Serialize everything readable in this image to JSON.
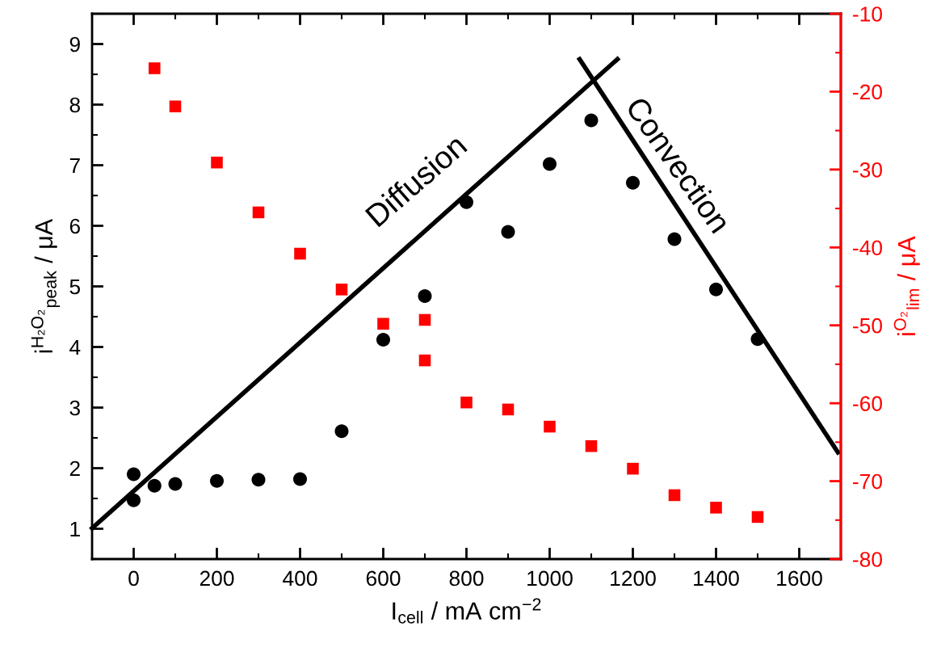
{
  "chart_data": {
    "type": "scatter",
    "xlabel": "I$_{cell}$ / mA cm$^{−2}$",
    "ylabel": "i$^{H₂O₂}$$_{peak}$ / μA",
    "y2label": "i$^{O₂}$$_{lim}$ / μA",
    "xlim": [
      -100,
      1700
    ],
    "xticks": [
      0,
      200,
      400,
      600,
      800,
      1000,
      1200,
      1400,
      1600
    ],
    "ylim": [
      0.5,
      9.5
    ],
    "yticks": [
      1,
      2,
      3,
      4,
      5,
      6,
      7,
      8,
      9
    ],
    "y2lim": [
      -80,
      -10
    ],
    "y2ticks": [
      -80,
      -70,
      -60,
      -50,
      -40,
      -30,
      -20,
      -10
    ],
    "grid": false,
    "series": [
      {
        "color": "#000000",
        "marker": "circle",
        "x": [
          0,
          0,
          50,
          100,
          200,
          300,
          400,
          500,
          600,
          700,
          800,
          900,
          1000,
          1100,
          1200,
          1300,
          1400,
          1500
        ],
        "values": [
          1.9,
          1.47,
          1.71,
          1.74,
          1.79,
          1.81,
          1.82,
          2.61,
          4.12,
          4.84,
          6.39,
          5.9,
          7.02,
          7.74,
          6.71,
          5.78,
          4.95,
          4.13
        ]
      },
      {
        "color": "#ff0000",
        "marker": "square",
        "axis": "y2",
        "x": [
          50,
          100,
          200,
          300,
          400,
          500,
          600,
          700,
          700,
          800,
          900,
          1000,
          1100,
          1200,
          1300,
          1400,
          1500
        ],
        "values": [
          -17.0,
          -21.9,
          -29.1,
          -35.5,
          -40.8,
          -45.4,
          -49.8,
          -49.3,
          -54.5,
          -59.9,
          -60.8,
          -63.0,
          -65.5,
          -68.4,
          -71.8,
          -73.4,
          -74.6
        ]
      },
      {
        "type": "line",
        "color": "#000000",
        "marker": "none",
        "line_style": "solid",
        "x": [
          -100,
          1163
        ],
        "values": [
          1.01,
          8.75
        ]
      },
      {
        "type": "line",
        "color": "#000000",
        "marker": "none",
        "line_style": "solid",
        "x": [
          1072,
          1693
        ],
        "values": [
          8.75,
          2.26
        ]
      }
    ],
    "annotations": [
      "Diffusion",
      "Convection"
    ]
  }
}
